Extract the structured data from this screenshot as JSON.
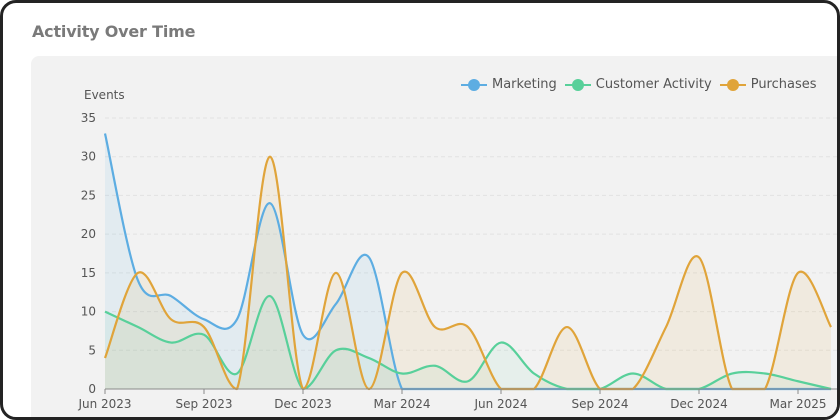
{
  "card": {
    "title": "Activity Over Time"
  },
  "legend": [
    {
      "label": "Marketing",
      "color": "#5dade2"
    },
    {
      "label": "Customer Activity",
      "color": "#58d09a"
    },
    {
      "label": "Purchases",
      "color": "#e0a43a"
    }
  ],
  "chart_data": {
    "type": "area",
    "title": "Activity Over Time",
    "xlabel": "",
    "ylabel": "Events",
    "ylim": [
      0,
      35
    ],
    "yticks": [
      0,
      5,
      10,
      15,
      20,
      25,
      30,
      35
    ],
    "grid": true,
    "legend_position": "top-right",
    "smooth": true,
    "x": [
      "Jun 2023",
      "Jul 2023",
      "Aug 2023",
      "Sep 2023",
      "Oct 2023",
      "Nov 2023",
      "Dec 2023",
      "Jan 2024",
      "Feb 2024",
      "Mar 2024",
      "Apr 2024",
      "May 2024",
      "Jun 2024",
      "Jul 2024",
      "Aug 2024",
      "Sep 2024",
      "Oct 2024",
      "Nov 2024",
      "Dec 2024",
      "Jan 2025",
      "Feb 2025",
      "Mar 2025",
      "Apr 2025"
    ],
    "xtick_labels": [
      "Jun 2023",
      "Sep 2023",
      "Dec 2023",
      "Mar 2024",
      "Jun 2024",
      "Sep 2024",
      "Dec 2024",
      "Mar 2025"
    ],
    "series": [
      {
        "name": "Marketing",
        "color": "#5dade2",
        "values": [
          33,
          14,
          12,
          9,
          9,
          24,
          7,
          11,
          17,
          0,
          0,
          0,
          0,
          0,
          0,
          0,
          0,
          0,
          0,
          0,
          0,
          0,
          0
        ]
      },
      {
        "name": "Customer Activity",
        "color": "#58d09a",
        "values": [
          10,
          8,
          6,
          7,
          2,
          12,
          0,
          5,
          4,
          2,
          3,
          1,
          6,
          2,
          0,
          0,
          2,
          0,
          0,
          2,
          2,
          1,
          0
        ]
      },
      {
        "name": "Purchases",
        "color": "#e0a43a",
        "values": [
          4,
          15,
          9,
          8,
          0,
          30,
          0,
          15,
          0,
          15,
          8,
          8,
          0,
          0,
          8,
          0,
          0,
          8,
          17,
          0,
          0,
          15,
          8
        ]
      }
    ]
  }
}
